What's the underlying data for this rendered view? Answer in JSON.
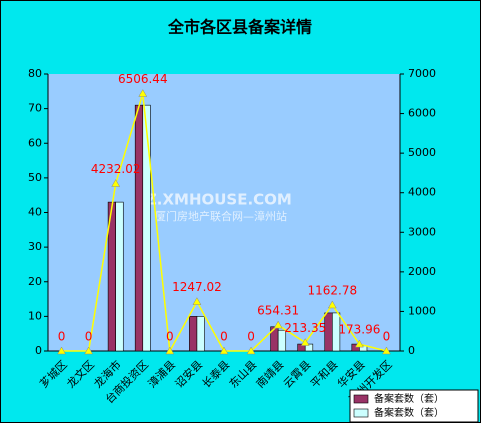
{
  "chart_data": {
    "type": "bar",
    "title": "全市各区县备案详情",
    "categories": [
      "芗城区",
      "龙文区",
      "龙海市",
      "台商投资区",
      "漳浦县",
      "诏安县",
      "长泰县",
      "东山县",
      "南靖县",
      "云霄县",
      "平和县",
      "华安县",
      "漳州开发区"
    ],
    "series": [
      {
        "name": "备案套数（套）",
        "color": "#993366",
        "values": [
          0,
          0,
          43,
          71,
          0,
          10,
          0,
          0,
          7,
          2,
          11,
          2,
          0
        ]
      },
      {
        "name": "备案套数（套）",
        "color": "#ccffff",
        "values": [
          0,
          0,
          43,
          71,
          0,
          10,
          0,
          0,
          6,
          2,
          11,
          1.5,
          0
        ]
      },
      {
        "type": "line",
        "axis": "y2",
        "color": "#ffff00",
        "label_color": "#ff0000",
        "values": [
          0,
          0,
          4232.02,
          6506.44,
          0,
          1247.02,
          0,
          0,
          654.31,
          213.35,
          1162.78,
          173.96,
          0
        ]
      }
    ],
    "ylim": [
      0,
      80
    ],
    "yticks": [
      0,
      10,
      20,
      30,
      40,
      50,
      60,
      70,
      80
    ],
    "y2lim": [
      0,
      7000
    ],
    "y2ticks": [
      0,
      1000,
      2000,
      3000,
      4000,
      5000,
      6000,
      7000
    ],
    "legend": "bottom-right",
    "watermark": [
      "ZZ.XMHOUSE.COM",
      "厦门房地产联合网—漳州站"
    ]
  }
}
